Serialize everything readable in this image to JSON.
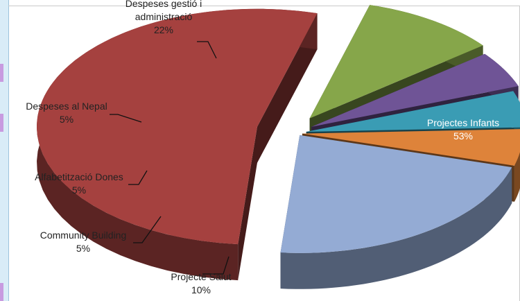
{
  "chart_data": {
    "type": "pie",
    "title": "",
    "style": "3d-exploded",
    "slices": [
      {
        "label": "Projectes Infants",
        "label_lines": [
          "Projectes Infants"
        ],
        "percent_label": "53%",
        "value": 53,
        "color": "#a5413f",
        "label_inside": true
      },
      {
        "label": "Projecte Salut",
        "label_lines": [
          "Projecte Salut"
        ],
        "percent_label": "10%",
        "value": 10,
        "color": "#86a64a",
        "label_inside": false
      },
      {
        "label": "Community Building",
        "label_lines": [
          "Community Building"
        ],
        "percent_label": "5%",
        "value": 5,
        "color": "#6f5496",
        "label_inside": false
      },
      {
        "label": "Alfabetització Dones",
        "label_lines": [
          "Alfabetització Dones"
        ],
        "percent_label": "5%",
        "value": 5,
        "color": "#3a9cb4",
        "label_inside": false
      },
      {
        "label": "Despeses al Nepal",
        "label_lines": [
          "Despeses al Nepal"
        ],
        "percent_label": "5%",
        "value": 5,
        "color": "#de833a",
        "label_inside": false
      },
      {
        "label": "Despeses gestió i administració",
        "label_lines": [
          "Despeses gestió i",
          "administració"
        ],
        "percent_label": "22%",
        "value": 22,
        "color": "#94abd4",
        "label_inside": false
      }
    ]
  }
}
